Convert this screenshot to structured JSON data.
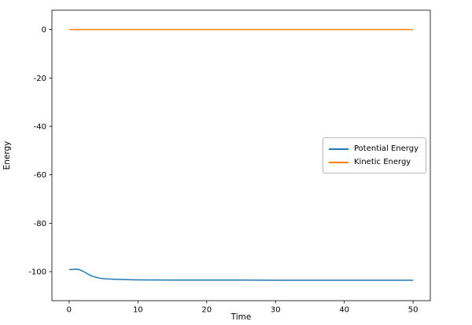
{
  "figure": {
    "background": "#ffffff"
  },
  "chart_data": {
    "type": "line",
    "title": "",
    "xlabel": "Time",
    "ylabel": "Energy",
    "xlim": [
      -2.5,
      52.5
    ],
    "ylim": [
      -112,
      8
    ],
    "xticks": [
      0,
      10,
      20,
      30,
      40,
      50
    ],
    "yticks": [
      0,
      -20,
      -40,
      -60,
      -80,
      -100
    ],
    "grid": false,
    "legend": {
      "position": "center right",
      "entries": [
        "Potential Energy",
        "Kinetic Energy"
      ]
    },
    "series": [
      {
        "name": "Potential Energy",
        "color": "#1f77b4",
        "x": [
          0,
          0.5,
          1,
          1.5,
          2,
          2.5,
          3,
          3.5,
          4,
          4.5,
          5,
          6,
          7,
          8,
          9,
          10,
          12,
          15,
          20,
          25,
          30,
          35,
          40,
          45,
          50
        ],
        "y": [
          -99.2,
          -99.1,
          -99.0,
          -99.2,
          -99.8,
          -100.6,
          -101.4,
          -102.0,
          -102.4,
          -102.7,
          -102.9,
          -103.1,
          -103.2,
          -103.3,
          -103.35,
          -103.4,
          -103.45,
          -103.5,
          -103.5,
          -103.5,
          -103.55,
          -103.55,
          -103.55,
          -103.55,
          -103.55
        ]
      },
      {
        "name": "Kinetic Energy",
        "color": "#ff7f0e",
        "x": [
          0,
          50
        ],
        "y": [
          0,
          0
        ]
      }
    ]
  }
}
